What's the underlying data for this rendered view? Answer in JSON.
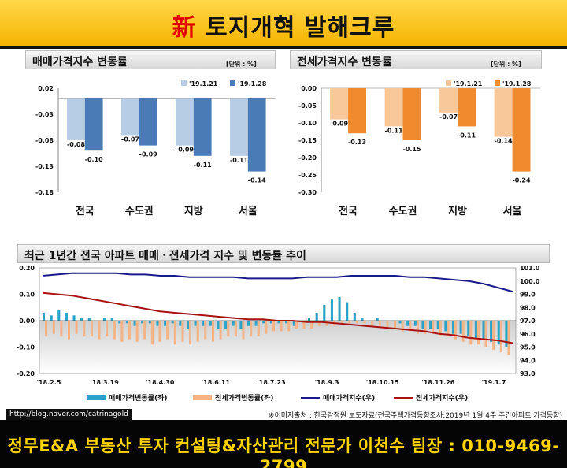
{
  "banner": {
    "accent": "新",
    "title": " 토지개혁 발해크루"
  },
  "footer": {
    "blog": "http://blog.naver.com/catrinagold",
    "source": "※이미지출처 : 한국감정원 보도자료(전국주택가격동향조사:2019년 1월 4주 주간아파트 가격동향)",
    "banner": "정무E&A 부동산 투자 컨설팅&자산관리 전문가 이천수 팀장 : 010-9469-2799"
  },
  "colors": {
    "light_blue": "#b7cde6",
    "dark_blue": "#4a7bb7",
    "light_orange": "#f9c89a",
    "dark_orange": "#f08a2e",
    "teal": "#2ba3c8",
    "peach": "#f3b587",
    "navy": "#1a1a8c",
    "dark_red": "#a81212"
  },
  "chart_data": [
    {
      "type": "bar",
      "title": "매매가격지수 변동률",
      "unit": "[단위 : %]",
      "categories": [
        "전국",
        "수도권",
        "지방",
        "서울"
      ],
      "series": [
        {
          "name": "'19.1.21",
          "values": [
            -0.08,
            -0.07,
            -0.09,
            -0.11
          ]
        },
        {
          "name": "'19.1.28",
          "values": [
            -0.1,
            -0.09,
            -0.11,
            -0.14
          ]
        }
      ],
      "value_labels": [
        [
          "-0.08",
          "-0.07",
          "-0.09",
          "-0.11"
        ],
        [
          "-0.10",
          "-0.09",
          "-0.11",
          "-0.14"
        ]
      ],
      "ylim": [
        -0.18,
        0.02
      ],
      "yticks": [
        0.02,
        -0.03,
        -0.08,
        -0.13,
        -0.18
      ],
      "ytick_labels": [
        "0.02",
        "-0.03",
        "-0.08",
        "-0.13",
        "-0.18"
      ],
      "legend": "top-right"
    },
    {
      "type": "bar",
      "title": "전세가격지수 변동률",
      "unit": "[단위 : %]",
      "categories": [
        "전국",
        "수도권",
        "지방",
        "서울"
      ],
      "series": [
        {
          "name": "'19.1.21",
          "values": [
            -0.09,
            -0.11,
            -0.07,
            -0.14
          ]
        },
        {
          "name": "'19.1.28",
          "values": [
            -0.13,
            -0.15,
            -0.11,
            -0.24
          ]
        }
      ],
      "value_labels": [
        [
          "-0.09",
          "-0.11",
          "-0.07",
          "-0.14"
        ],
        [
          "-0.13",
          "-0.15",
          "-0.11",
          "-0.24"
        ]
      ],
      "ylim": [
        -0.3,
        0.0
      ],
      "yticks": [
        0,
        -0.05,
        -0.1,
        -0.15,
        -0.2,
        -0.25,
        -0.3
      ],
      "ytick_labels": [
        "0.00",
        "-0.05",
        "-0.10",
        "-0.15",
        "-0.20",
        "-0.25",
        "-0.30"
      ],
      "legend": "top-right"
    },
    {
      "type": "bar+line",
      "title": "최근 1년간 전국 아파트 매매ㆍ전세가격 지수 및 변동률 추이",
      "x_tick_labels": [
        "'18.2.5",
        "'18.3.19",
        "'18.4.30",
        "'18.6.11",
        "'18.7.23",
        "'18.9.3",
        "'18.10.15",
        "'18.11.26",
        "'19.1.7"
      ],
      "left_ylim": [
        -0.2,
        0.2
      ],
      "left_ytick_labels": [
        "0.20",
        "0.10",
        "0.00",
        "-0.10",
        "-0.20"
      ],
      "right_ylim": [
        93.0,
        101.0
      ],
      "right_ytick_labels": [
        "101.0",
        "100.0",
        "99.0",
        "98.0",
        "97.0",
        "96.0",
        "95.0",
        "94.0",
        "93.0"
      ],
      "series": [
        {
          "name": "매매가격변동률(좌)",
          "kind": "bar",
          "values": [
            0.03,
            0.02,
            0.04,
            0.03,
            0.02,
            0.01,
            0.01,
            0.0,
            0.01,
            0.01,
            -0.01,
            -0.01,
            -0.02,
            -0.01,
            -0.01,
            -0.02,
            -0.02,
            -0.01,
            -0.02,
            -0.03,
            -0.02,
            -0.02,
            -0.02,
            -0.03,
            -0.03,
            -0.02,
            -0.03,
            -0.02,
            -0.02,
            -0.01,
            -0.01,
            -0.01,
            -0.01,
            -0.02,
            0.0,
            0.01,
            0.03,
            0.06,
            0.08,
            0.09,
            0.07,
            0.03,
            0.01,
            0.0,
            0.01,
            0.0,
            0.0,
            -0.01,
            -0.02,
            -0.02,
            -0.03,
            -0.03,
            -0.03,
            -0.04,
            -0.05,
            -0.05,
            -0.06,
            -0.07,
            -0.07,
            -0.08,
            -0.09,
            -0.1
          ]
        },
        {
          "name": "전세가격변동률(좌)",
          "kind": "bar",
          "values": [
            -0.06,
            -0.05,
            -0.06,
            -0.07,
            -0.05,
            -0.06,
            -0.06,
            -0.07,
            -0.06,
            -0.07,
            -0.08,
            -0.07,
            -0.08,
            -0.07,
            -0.09,
            -0.08,
            -0.07,
            -0.09,
            -0.08,
            -0.09,
            -0.08,
            -0.07,
            -0.08,
            -0.07,
            -0.06,
            -0.06,
            -0.07,
            -0.06,
            -0.06,
            -0.05,
            -0.04,
            -0.04,
            -0.04,
            -0.03,
            -0.03,
            -0.03,
            -0.02,
            -0.02,
            -0.02,
            -0.01,
            -0.01,
            -0.01,
            -0.01,
            -0.02,
            -0.02,
            -0.03,
            -0.03,
            -0.04,
            -0.04,
            -0.05,
            -0.05,
            -0.05,
            -0.06,
            -0.06,
            -0.07,
            -0.08,
            -0.09,
            -0.09,
            -0.1,
            -0.11,
            -0.12,
            -0.13
          ]
        },
        {
          "name": "매매가격지수(우)",
          "kind": "line",
          "values": [
            100.4,
            100.5,
            100.6,
            100.6,
            100.6,
            100.6,
            100.5,
            100.5,
            100.4,
            100.4,
            100.3,
            100.3,
            100.3,
            100.3,
            100.2,
            100.2,
            100.2,
            100.2,
            100.3,
            100.3,
            100.3,
            100.4,
            100.4,
            100.4,
            100.4,
            100.3,
            100.3,
            100.2,
            100.1,
            100.0,
            99.8,
            99.5,
            99.2
          ]
        },
        {
          "name": "전세가격지수(우)",
          "kind": "line",
          "values": [
            99.1,
            99.0,
            98.9,
            98.7,
            98.5,
            98.3,
            98.1,
            97.9,
            97.7,
            97.6,
            97.5,
            97.4,
            97.3,
            97.2,
            97.1,
            97.1,
            97.0,
            97.0,
            96.9,
            96.9,
            96.8,
            96.7,
            96.6,
            96.5,
            96.4,
            96.3,
            96.2,
            96.0,
            95.9,
            95.7,
            95.6,
            95.5,
            95.3
          ]
        }
      ],
      "legend": "bottom"
    }
  ]
}
